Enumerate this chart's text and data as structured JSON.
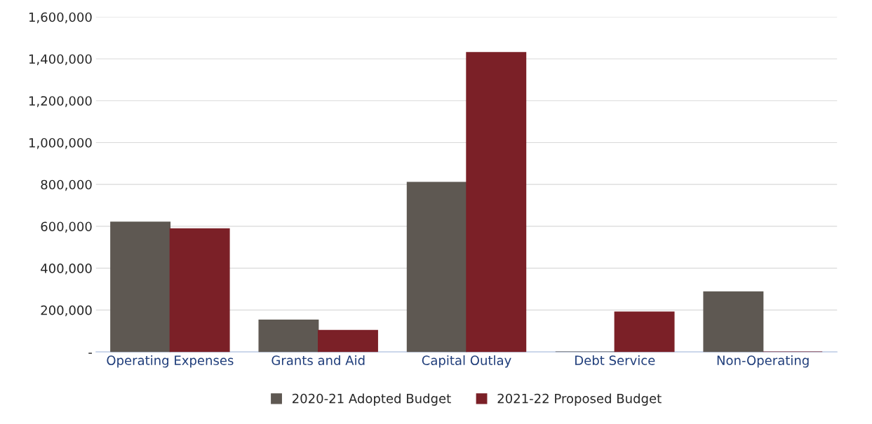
{
  "chart_data": {
    "type": "bar",
    "categories": [
      "Operating Expenses",
      "Grants and Aid",
      "Capital Outlay",
      "Debt Service",
      "Non-Operating"
    ],
    "series": [
      {
        "name": "2020-21 Adopted Budget",
        "color": "#5e5852",
        "values": [
          620000,
          152000,
          810000,
          0,
          287000
        ]
      },
      {
        "name": "2021-22 Proposed Budget",
        "color": "#7b2027",
        "values": [
          588000,
          103000,
          1430000,
          191000,
          0
        ]
      }
    ],
    "ylim": [
      0,
      1600000
    ],
    "yticks": [
      {
        "value": 0,
        "label": "-"
      },
      {
        "value": 200000,
        "label": "200,000"
      },
      {
        "value": 400000,
        "label": "400,000"
      },
      {
        "value": 600000,
        "label": "600,000"
      },
      {
        "value": 800000,
        "label": "800,000"
      },
      {
        "value": 1000000,
        "label": "1,000,000"
      },
      {
        "value": 1200000,
        "label": "1,200,000"
      },
      {
        "value": 1400000,
        "label": "1,400,000"
      },
      {
        "value": 1600000,
        "label": "1,600,000"
      }
    ],
    "grid": "y",
    "legend": "bottom"
  }
}
